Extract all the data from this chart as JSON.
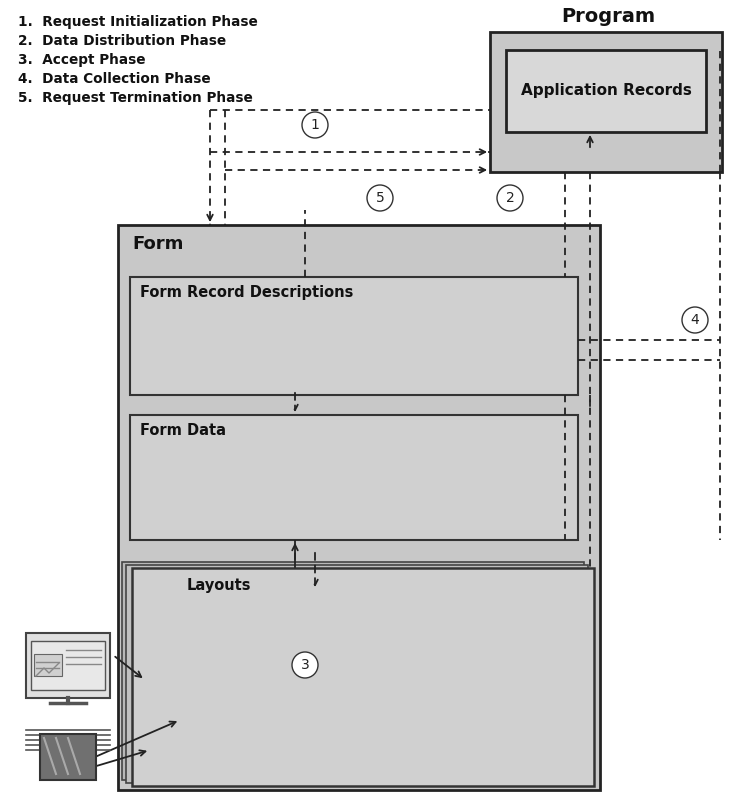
{
  "title": "Program",
  "bg_color": "#ffffff",
  "legend_items": [
    "1.  Request Initialization Phase",
    "2.  Data Distribution Phase",
    "3.  Accept Phase",
    "4.  Data Collection Phase",
    "5.  Request Termination Phase"
  ],
  "colors": {
    "form_outer_bg": "#c0c0c0",
    "form_inner_bg": "#d3d3d3",
    "box_bg": "#c8c8c8",
    "program_outer": "#c0c0c0",
    "program_inner": "#d8d8d8",
    "app_records_bg": "#c0c0c0",
    "layout_front": "#d0d0d0",
    "layout_back1": "#c0c0c0",
    "layout_back2": "#b8b8b8",
    "text_dark": "#111111",
    "arrow_color": "#222222"
  }
}
